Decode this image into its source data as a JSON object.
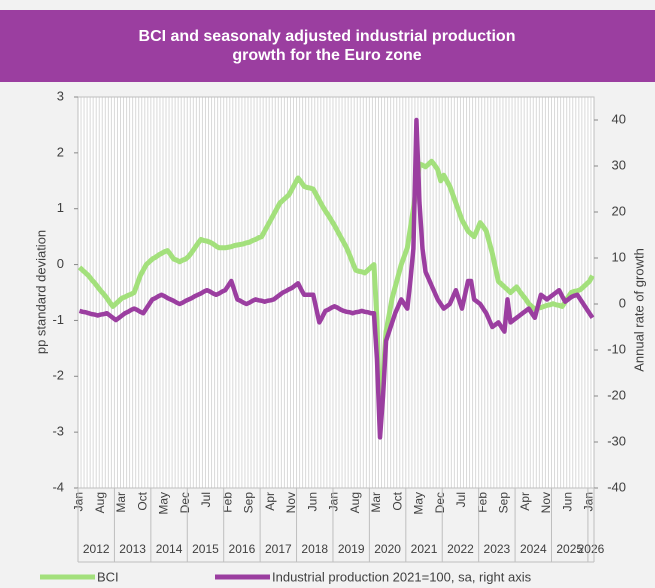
{
  "chart_data": {
    "type": "line",
    "title": "BCI and seasonaly adjusted industrial production growth for the Euro zone",
    "ylabel": "pp standard deviation",
    "y2label": "Annual rate of growth",
    "ylim": [
      -4,
      3
    ],
    "yticks": [
      -4,
      -3,
      -2,
      -1,
      0,
      1,
      2,
      3
    ],
    "y2lim": [
      -40,
      45
    ],
    "y2ticks": [
      -40,
      -30,
      -20,
      -10,
      0,
      10,
      20,
      30,
      40
    ],
    "grid": true,
    "years": [
      "2012",
      "2013",
      "2014",
      "2015",
      "2016",
      "2017",
      "2018",
      "2019",
      "2020",
      "2021",
      "2022",
      "2023",
      "2024",
      "2025",
      "2026"
    ],
    "categories": [
      "Jan",
      null,
      null,
      null,
      null,
      null,
      null,
      "Aug",
      null,
      null,
      null,
      null,
      null,
      null,
      "Mar",
      null,
      null,
      null,
      null,
      null,
      null,
      "Oct",
      null,
      null,
      null,
      null,
      null,
      null,
      "May",
      null,
      null,
      null,
      null,
      null,
      null,
      "Dec",
      null,
      null,
      null,
      null,
      null,
      null,
      "Jul",
      null,
      null,
      null,
      null,
      null,
      null,
      "Feb",
      null,
      null,
      null,
      null,
      null,
      null,
      "Sep",
      null,
      null,
      null,
      null,
      null,
      null,
      "Apr",
      null,
      null,
      null,
      null,
      null,
      null,
      "Nov",
      null,
      null,
      null,
      null,
      null,
      null,
      "Jun",
      null,
      null,
      null,
      null,
      null,
      null,
      "Jan",
      null,
      null,
      null,
      null,
      null,
      null,
      "Aug",
      null,
      null,
      null,
      null,
      null,
      null,
      "Mar",
      null,
      null,
      null,
      null,
      null,
      null,
      "Oct",
      null,
      null,
      null,
      null,
      null,
      null,
      "May",
      null,
      null,
      null,
      null,
      null,
      null,
      "Dec",
      null,
      null,
      null,
      null,
      null,
      null,
      "Jul",
      null,
      null,
      null,
      null,
      null,
      null,
      "Feb",
      null,
      null,
      null,
      null,
      null,
      null,
      "Sep",
      null,
      null,
      null,
      null,
      null,
      null,
      "Apr",
      null,
      null,
      null,
      null,
      null,
      null,
      "Nov",
      null,
      null,
      null,
      null,
      null,
      null,
      "Jun",
      null,
      null,
      null,
      null,
      null,
      null,
      "Jan",
      null
    ],
    "series": [
      {
        "name": "BCI",
        "color": "#a3e07c",
        "axis": "y",
        "values": [
          -0.05,
          -0.1,
          -0.15,
          -0.2,
          -0.27,
          -0.33,
          -0.4,
          -0.47,
          -0.53,
          -0.6,
          -0.68,
          -0.75,
          -0.7,
          -0.65,
          -0.6,
          -0.58,
          -0.55,
          -0.53,
          -0.5,
          -0.35,
          -0.2,
          -0.1,
          0.0,
          0.05,
          0.1,
          0.13,
          0.17,
          0.2,
          0.23,
          0.25,
          0.18,
          0.1,
          0.08,
          0.05,
          0.08,
          0.1,
          0.15,
          0.22,
          0.3,
          0.38,
          0.45,
          0.43,
          0.42,
          0.4,
          0.37,
          0.33,
          0.3,
          0.3,
          0.3,
          0.31,
          0.32,
          0.34,
          0.35,
          0.36,
          0.37,
          0.39,
          0.4,
          0.43,
          0.45,
          0.48,
          0.5,
          0.6,
          0.7,
          0.8,
          0.9,
          1.0,
          1.1,
          1.15,
          1.2,
          1.25,
          1.35,
          1.45,
          1.55,
          1.48,
          1.4,
          1.38,
          1.37,
          1.35,
          1.25,
          1.15,
          1.05,
          0.96,
          0.88,
          0.79,
          0.7,
          0.6,
          0.5,
          0.4,
          0.3,
          0.17,
          0.03,
          -0.1,
          -0.12,
          -0.13,
          -0.15,
          -0.1,
          -0.05,
          0.0,
          -1.0,
          -2.9,
          -2.0,
          -1.2,
          -0.9,
          -0.6,
          -0.4,
          -0.2,
          0.0,
          0.15,
          0.3,
          0.65,
          1.0,
          1.4,
          1.8,
          1.78,
          1.75,
          1.8,
          1.85,
          1.78,
          1.7,
          1.5,
          1.6,
          1.5,
          1.4,
          1.25,
          1.1,
          0.95,
          0.8,
          0.7,
          0.6,
          0.55,
          0.5,
          0.62,
          0.75,
          0.68,
          0.6,
          0.4,
          0.2,
          -0.05,
          -0.3,
          -0.35,
          -0.4,
          -0.45,
          -0.5,
          -0.45,
          -0.4,
          -0.48,
          -0.55,
          -0.62,
          -0.7,
          -0.75,
          -0.8,
          -0.78,
          -0.77,
          -0.75,
          -0.73,
          -0.72,
          -0.7,
          -0.72,
          -0.73,
          -0.75,
          -0.67,
          -0.58,
          -0.5,
          -0.48,
          -0.47,
          -0.45,
          -0.4,
          -0.35,
          -0.3,
          -0.2
        ]
      },
      {
        "name": "Industrial production 2021=100, sa, right axis",
        "color": "#9b3ea0",
        "axis": "y2",
        "values": [
          -1.5,
          -1.7,
          -1.8,
          -2,
          -2.2,
          -2.3,
          -2.5,
          -2.3,
          -2.2,
          -2,
          -2.5,
          -3,
          -3.5,
          -3,
          -2.5,
          -2,
          -1.7,
          -1.3,
          -1,
          -1.3,
          -1.7,
          -2,
          -1,
          0,
          1,
          1.3,
          1.7,
          2,
          1.7,
          1.3,
          1,
          0.7,
          0.3,
          0,
          0.3,
          0.7,
          1,
          1.3,
          1.7,
          2,
          2.3,
          2.7,
          3,
          2.7,
          2.3,
          2,
          2.3,
          2.7,
          3,
          4,
          5,
          3,
          1,
          0.7,
          0.3,
          0,
          0.3,
          0.7,
          1,
          0.8,
          0.7,
          0.5,
          0.7,
          0.8,
          1,
          1.5,
          2,
          2.5,
          2.8,
          3.2,
          3.5,
          4,
          4.5,
          3.2,
          2,
          2,
          2,
          2,
          -1,
          -4,
          -2.8,
          -1.5,
          -1.2,
          -0.8,
          -0.5,
          -0.8,
          -1.2,
          -1.5,
          -1.7,
          -1.8,
          -2,
          -1.8,
          -1.7,
          -1.5,
          -1.7,
          -1.8,
          -2,
          -2,
          -12,
          -29,
          -20,
          -8,
          -6,
          -4,
          -2,
          -0.5,
          1,
          0,
          -1,
          5,
          12,
          40,
          22,
          12,
          7,
          5.5,
          4,
          2.5,
          1,
          0,
          -1,
          -0.5,
          0,
          1.5,
          3,
          1,
          -1,
          2,
          5,
          5,
          1,
          0.5,
          0,
          -1,
          -2,
          -3.5,
          -5,
          -4.5,
          -4,
          -5,
          -6,
          1,
          -4,
          -3.5,
          -3,
          -2.5,
          -2,
          -1.5,
          -1,
          -2,
          -3,
          -0.5,
          2,
          1.5,
          1,
          1.5,
          2,
          2.5,
          3,
          1.7,
          0.5,
          1,
          1.5,
          1.8,
          2,
          1,
          0,
          -1,
          -2,
          -3
        ]
      }
    ]
  }
}
